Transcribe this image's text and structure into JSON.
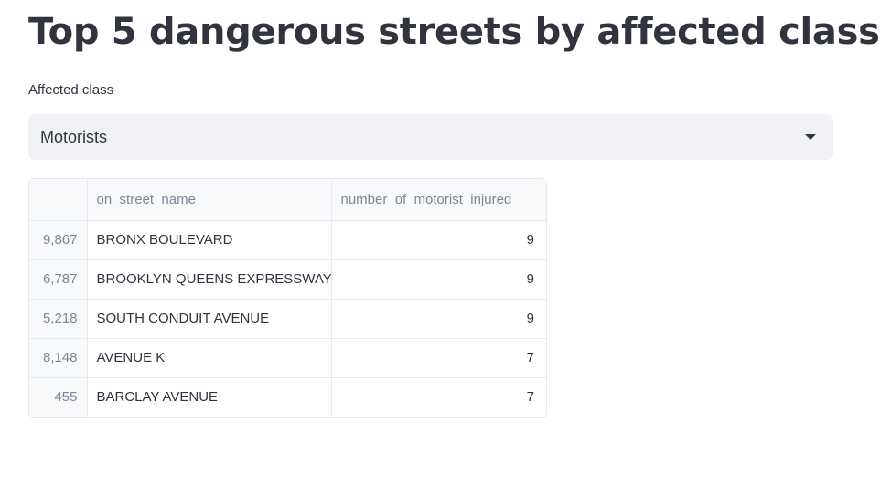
{
  "page": {
    "title": "Top 5 dangerous streets by affected class"
  },
  "filter": {
    "label": "Affected class",
    "selected": "Motorists"
  },
  "table": {
    "columns": [
      "",
      "on_street_name",
      "number_of_motorist_injured"
    ],
    "rows": [
      {
        "index": "9,867",
        "on_street_name": "BRONX BOULEVARD",
        "number_of_motorist_injured": "9"
      },
      {
        "index": "6,787",
        "on_street_name": "BROOKLYN QUEENS EXPRESSWAY",
        "number_of_motorist_injured": "9"
      },
      {
        "index": "5,218",
        "on_street_name": "SOUTH CONDUIT AVENUE",
        "number_of_motorist_injured": "9"
      },
      {
        "index": "8,148",
        "on_street_name": "AVENUE K",
        "number_of_motorist_injured": "7"
      },
      {
        "index": "455",
        "on_street_name": "BARCLAY AVENUE",
        "number_of_motorist_injured": "7"
      }
    ]
  },
  "icons": {
    "select_caret": "caret-down-icon"
  }
}
